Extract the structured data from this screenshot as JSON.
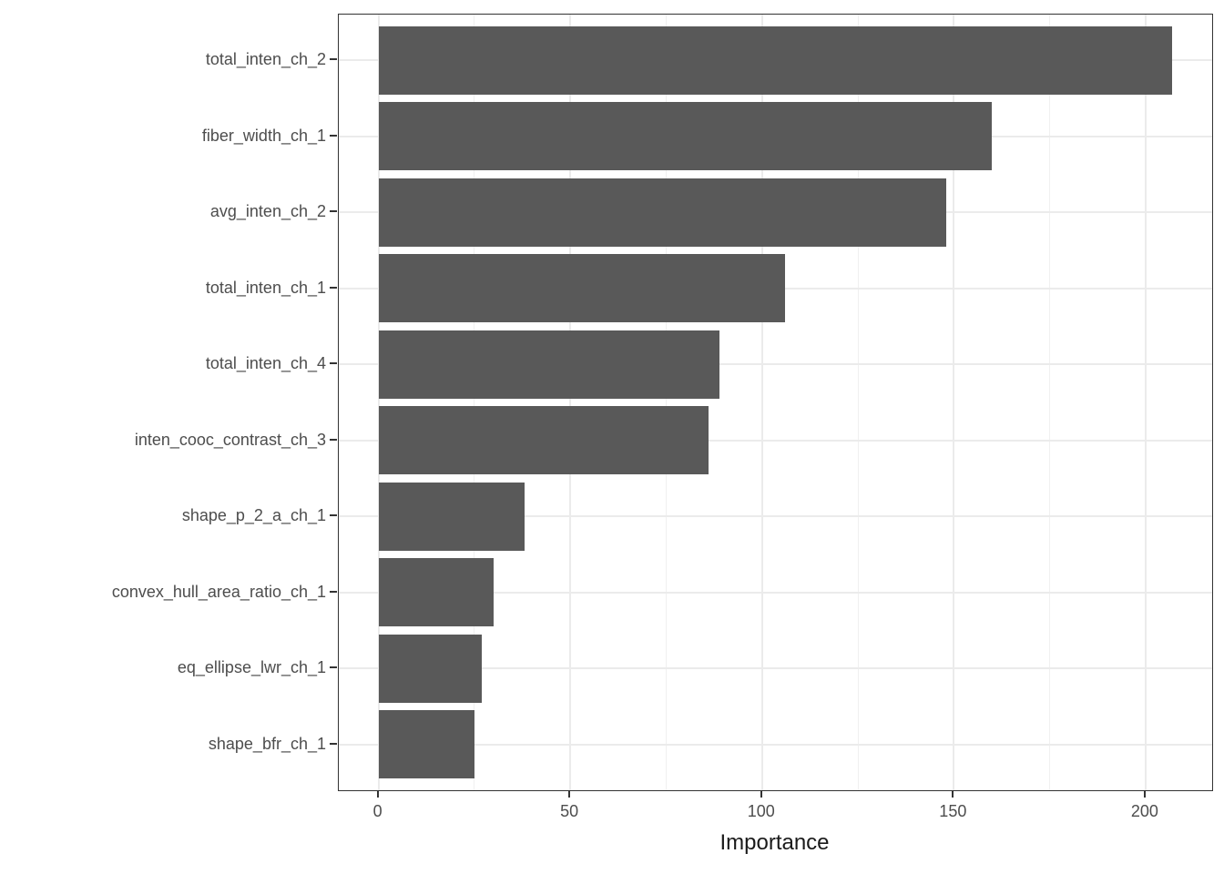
{
  "chart_data": {
    "type": "bar",
    "orientation": "horizontal",
    "title": "",
    "xlabel": "Importance",
    "ylabel": "",
    "categories": [
      "total_inten_ch_2",
      "fiber_width_ch_1",
      "avg_inten_ch_2",
      "total_inten_ch_1",
      "total_inten_ch_4",
      "inten_cooc_contrast_ch_3",
      "shape_p_2_a_ch_1",
      "convex_hull_area_ratio_ch_1",
      "eq_ellipse_lwr_ch_1",
      "shape_bfr_ch_1"
    ],
    "values": [
      207,
      160,
      148,
      106,
      89,
      86,
      38,
      30,
      27,
      25
    ],
    "x_ticks": [
      0,
      50,
      100,
      150,
      200
    ],
    "x_minor_ticks": [
      25,
      75,
      125,
      175
    ],
    "xlim": [
      -10.35,
      217.35
    ],
    "bar_width_fraction": 0.9,
    "grid": "vertical major+minor, horizontal major at category centers",
    "legend_position": "none",
    "colors": {
      "bar": "#595959",
      "panel_border": "#333333",
      "grid_major": "#ebebeb",
      "grid_minor": "#f0f0f0",
      "tick_mark": "#333333",
      "tick_label": "#4d4d4d",
      "axis_title": "#1a1a1a",
      "background": "#ffffff"
    }
  }
}
